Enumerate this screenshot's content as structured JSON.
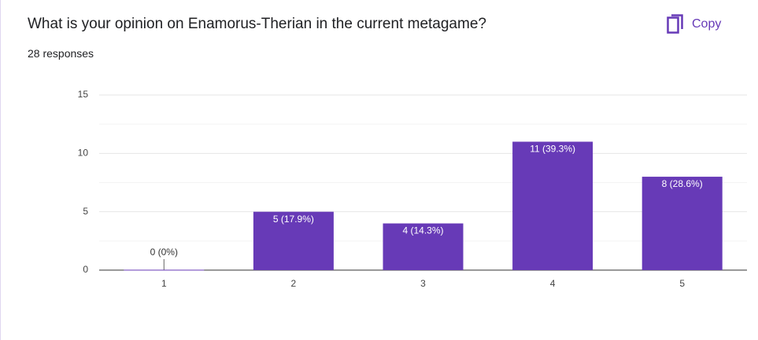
{
  "chart_data": {
    "type": "bar",
    "title": "What is your opinion on Enamorus-Therian in the current metagame?",
    "subtitle": "28 responses",
    "button": "Copy",
    "categories": [
      "1",
      "2",
      "3",
      "4",
      "5"
    ],
    "values": [
      0,
      5,
      4,
      11,
      8
    ],
    "value_labels": [
      "0 (0%)",
      "5 (17.9%)",
      "4 (14.3%)",
      "11 (39.3%)",
      "8 (28.6%)"
    ],
    "color": "#673ab7",
    "ylim": [
      0,
      15
    ],
    "yticks": [
      0,
      5,
      10,
      15
    ],
    "minor_yticks": [
      2.5,
      7.5,
      12.5
    ],
    "grid": true
  }
}
